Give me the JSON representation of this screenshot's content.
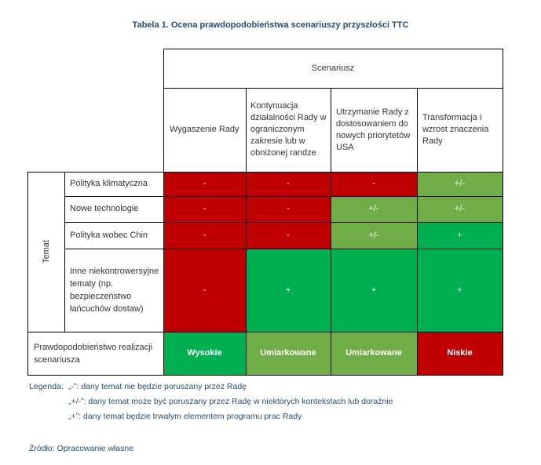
{
  "title": "Tabela 1. Ocena prawdopodobieństwa scenariuszy przyszłości TTC",
  "header_group": "Scenariusz",
  "scenarios": [
    "Wygaszenie Rady",
    "Kontynuacja działalności Rady w ograniczonym zakresie lub w obniżonej randze",
    "Utrzymanie Rady z dostosowaniem do nowych priorytetów USA",
    "Transformacja i wzrost znaczenia Rady"
  ],
  "row_group": "Temat",
  "rows": [
    {
      "label": "Polityka klimatyczna",
      "values": [
        "-",
        "-",
        "-",
        "+/-"
      ]
    },
    {
      "label": "Nowe technologie",
      "values": [
        "-",
        "-",
        "+/-",
        "+/-"
      ]
    },
    {
      "label": "Polityka wobec Chin",
      "values": [
        "-",
        "-",
        "+/-",
        "+"
      ]
    },
    {
      "label": "Inne niekontrowersyjne tematy (np. bezpieczeństwo łańcuchów dostaw)",
      "values": [
        "-",
        "+",
        "+",
        "+"
      ]
    }
  ],
  "probability": {
    "label": "Prawdopodobieństwo realizacji scenariusza",
    "values": [
      "Wysokie",
      "Umiarkowane",
      "Umiarkowane",
      "Niskie"
    ]
  },
  "legend": {
    "prefix": "Legenda:",
    "items": [
      "„-”: dany temat nie będzie poruszany przez Radę",
      "„+/-”: dany temat może być poruszany przez Radę w niektórych kontekstach lub doraźnie",
      "„+”: dany temat będzie trwałym elementem programu prac Rady"
    ]
  },
  "source": "Źródło: Opracowanie własne",
  "colors": {
    "red": "#c00000",
    "light_green": "#70ad47",
    "dark_green": "#00b050",
    "title_blue": "#1f4e79"
  }
}
